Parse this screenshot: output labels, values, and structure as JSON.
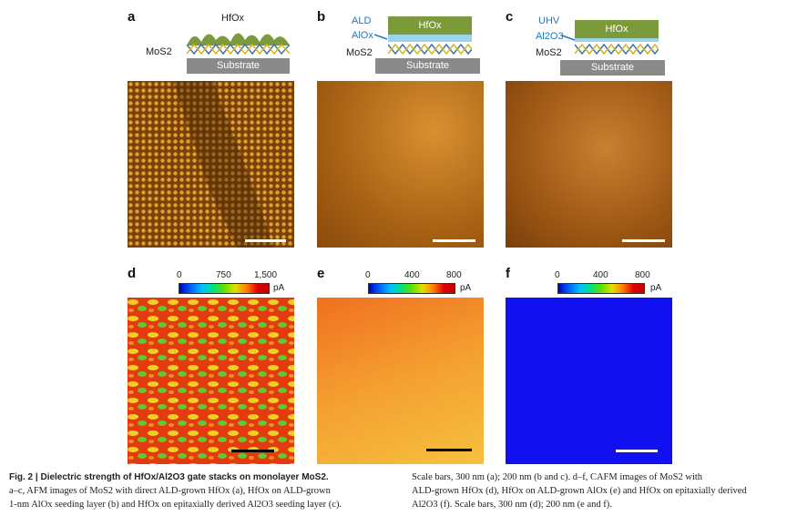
{
  "panels": {
    "a": {
      "label": "a",
      "layer": "HfOx",
      "mos2": "MoS2",
      "substrate": "Substrate"
    },
    "b": {
      "label": "b",
      "method": "ALD",
      "seed": "AlOx",
      "layer": "HfOx",
      "mos2": "MoS2",
      "substrate": "Substrate"
    },
    "c": {
      "label": "c",
      "method": "UHV",
      "seed": "Al2O3",
      "layer": "HfOx",
      "mos2": "MoS2",
      "substrate": "Substrate"
    },
    "d": {
      "label": "d",
      "ticks": [
        "0",
        "750",
        "1,500"
      ],
      "unit": "pA"
    },
    "e": {
      "label": "e",
      "ticks": [
        "0",
        "400",
        "800"
      ],
      "unit": "pA"
    },
    "f": {
      "label": "f",
      "ticks": [
        "0",
        "400",
        "800"
      ],
      "unit": "pA"
    }
  },
  "colors": {
    "afm_a": "#b06a10",
    "afm_bc": "#b8741c",
    "cafm_d": "#e83a10",
    "cafm_e": "#f5a020",
    "cafm_f": "#1010f0",
    "hfox": "#7b9a3a",
    "alox": "#9ad6e8",
    "substrate": "#8a8a8a"
  },
  "caption": {
    "title": "Fig. 2 | Dielectric strength of HfOx/Al2O3 gate stacks on monolayer MoS2.",
    "col1_line1": "a–c, AFM images of MoS2 with direct ALD-grown HfOx (a), HfOx on ALD-grown",
    "col1_line2": "1-nm AlOx seeding layer (b) and HfOx on epitaxially derived Al2O3 seeding layer (c).",
    "col2_line0": "Scale bars, 300 nm (a); 200 nm (b and c). d–f, CAFM images of MoS2 with",
    "col2_line1": "ALD-grown HfOx (d), HfOx on ALD-grown AlOx (e) and HfOx on epitaxially derived",
    "col2_line2": "Al2O3 (f). Scale bars, 300 nm (d); 200 nm (e and f)."
  }
}
